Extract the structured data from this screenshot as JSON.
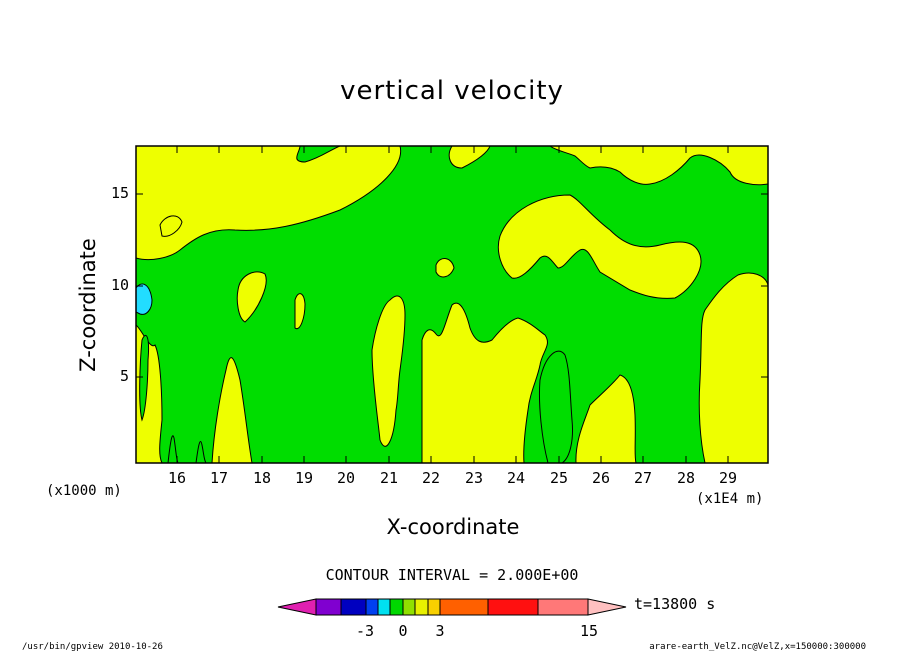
{
  "chart_data": {
    "type": "contour",
    "title": "vertical velocity",
    "xlabel": "X-coordinate",
    "ylabel": "Z-coordinate",
    "x_multiplier": "(x1E4 m)",
    "y_multiplier": "(x1000 m)",
    "xlim": [
      15.2,
      29.9
    ],
    "ylim": [
      0.3,
      17.6
    ],
    "x_ticks": [
      "16",
      "17",
      "18",
      "19",
      "20",
      "21",
      "22",
      "23",
      "24",
      "25",
      "26",
      "27",
      "28",
      "29"
    ],
    "y_ticks": [
      "5",
      "10",
      "15"
    ],
    "contour_interval": "CONTOUR INTERVAL = 2.000E+00",
    "colorbar": {
      "colors": [
        "#e020b0",
        "#8000d0",
        "#0000c0",
        "#0040f0",
        "#00a0ff",
        "#00e0f0",
        "#00d800",
        "#90e000",
        "#e8f000",
        "#f8d000",
        "#f8a800",
        "#ff6000",
        "#ff1010",
        "#ff7878",
        "#ffc0c0"
      ],
      "tick_labels": [
        "-3",
        "0",
        "3",
        "15"
      ]
    },
    "dominant_values": [
      {
        "range": "0 to 2",
        "color": "#00dd00"
      },
      {
        "range": "2 to 4",
        "color": "#eeff00"
      },
      {
        "range": "-2 to 0",
        "color": "#22ddff"
      }
    ],
    "time": "t=13800 s"
  },
  "footer": {
    "left": "/usr/bin/gpview  2010-10-26",
    "right": "arare-earth_VelZ.nc@VelZ,x=150000:300000"
  }
}
